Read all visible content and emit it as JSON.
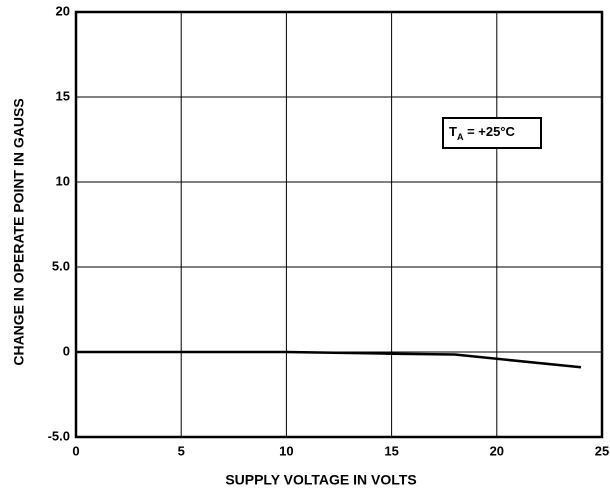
{
  "chart_data": {
    "type": "line",
    "xlabel": "SUPPLY VOLTAGE IN VOLTS",
    "ylabel": "CHANGE IN OPERATE POINT IN GAUSS",
    "annotation": {
      "main": "T",
      "sub": "A",
      "rest": " = +25°C"
    },
    "x": [
      0,
      5,
      10,
      15,
      18,
      24
    ],
    "values": [
      0,
      0,
      0,
      -0.1,
      -0.15,
      -0.9
    ],
    "color": "#000000",
    "xlim": [
      0,
      25
    ],
    "xticks": [
      0,
      5,
      10,
      15,
      20,
      25
    ],
    "ylim": [
      -5,
      20
    ],
    "yticks": [
      {
        "value": -5,
        "label": "-5.0"
      },
      0,
      {
        "value": 5,
        "label": "5.0"
      },
      10,
      15,
      20
    ],
    "grid": true
  }
}
